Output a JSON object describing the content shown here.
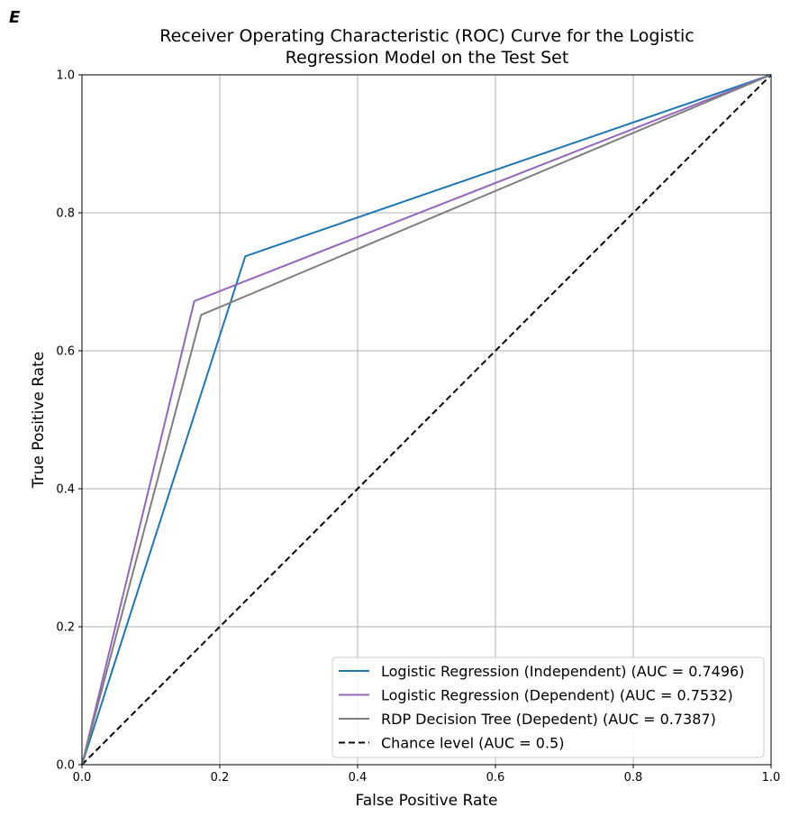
{
  "panel_label": "E",
  "chart_data": {
    "type": "line",
    "title_lines": [
      "Receiver Operating Characteristic (ROC) Curve for the Logistic",
      "Regression Model on the Test Set"
    ],
    "xlabel": "False Positive Rate",
    "ylabel": "True Positive Rate",
    "xlim": [
      0,
      1
    ],
    "ylim": [
      0,
      1
    ],
    "xticks": [
      0.0,
      0.2,
      0.4,
      0.6,
      0.8,
      1.0
    ],
    "yticks": [
      0.0,
      0.2,
      0.4,
      0.6,
      0.8,
      1.0
    ],
    "xtick_labels": [
      "0.0",
      "0.2",
      "0.4",
      "0.6",
      "0.8",
      "1.0"
    ],
    "ytick_labels": [
      "0.0",
      "0.2",
      "0.4",
      "0.6",
      "0.8",
      "1.0"
    ],
    "grid": true,
    "legend_position": "lower-right",
    "series": [
      {
        "name": "Logistic Regression (Independent) (AUC = 0.7496)",
        "color": "#1f77b4",
        "dash": "solid",
        "x": [
          0.0,
          0.237,
          1.0
        ],
        "y": [
          0.0,
          0.737,
          1.0
        ]
      },
      {
        "name": "Logistic Regression (Dependent) (AUC = 0.7532)",
        "color": "#9467bd",
        "dash": "solid",
        "x": [
          0.0,
          0.163,
          1.0
        ],
        "y": [
          0.0,
          0.672,
          1.0
        ]
      },
      {
        "name": "RDP Decision Tree (Depedent) (AUC = 0.7387)",
        "color": "#7f7f7f",
        "dash": "solid",
        "x": [
          0.0,
          0.173,
          1.0
        ],
        "y": [
          0.0,
          0.652,
          1.0
        ]
      },
      {
        "name": "Chance level (AUC = 0.5)",
        "color": "#000000",
        "dash": "dashed",
        "x": [
          0.0,
          1.0
        ],
        "y": [
          0.0,
          1.0
        ]
      }
    ]
  }
}
